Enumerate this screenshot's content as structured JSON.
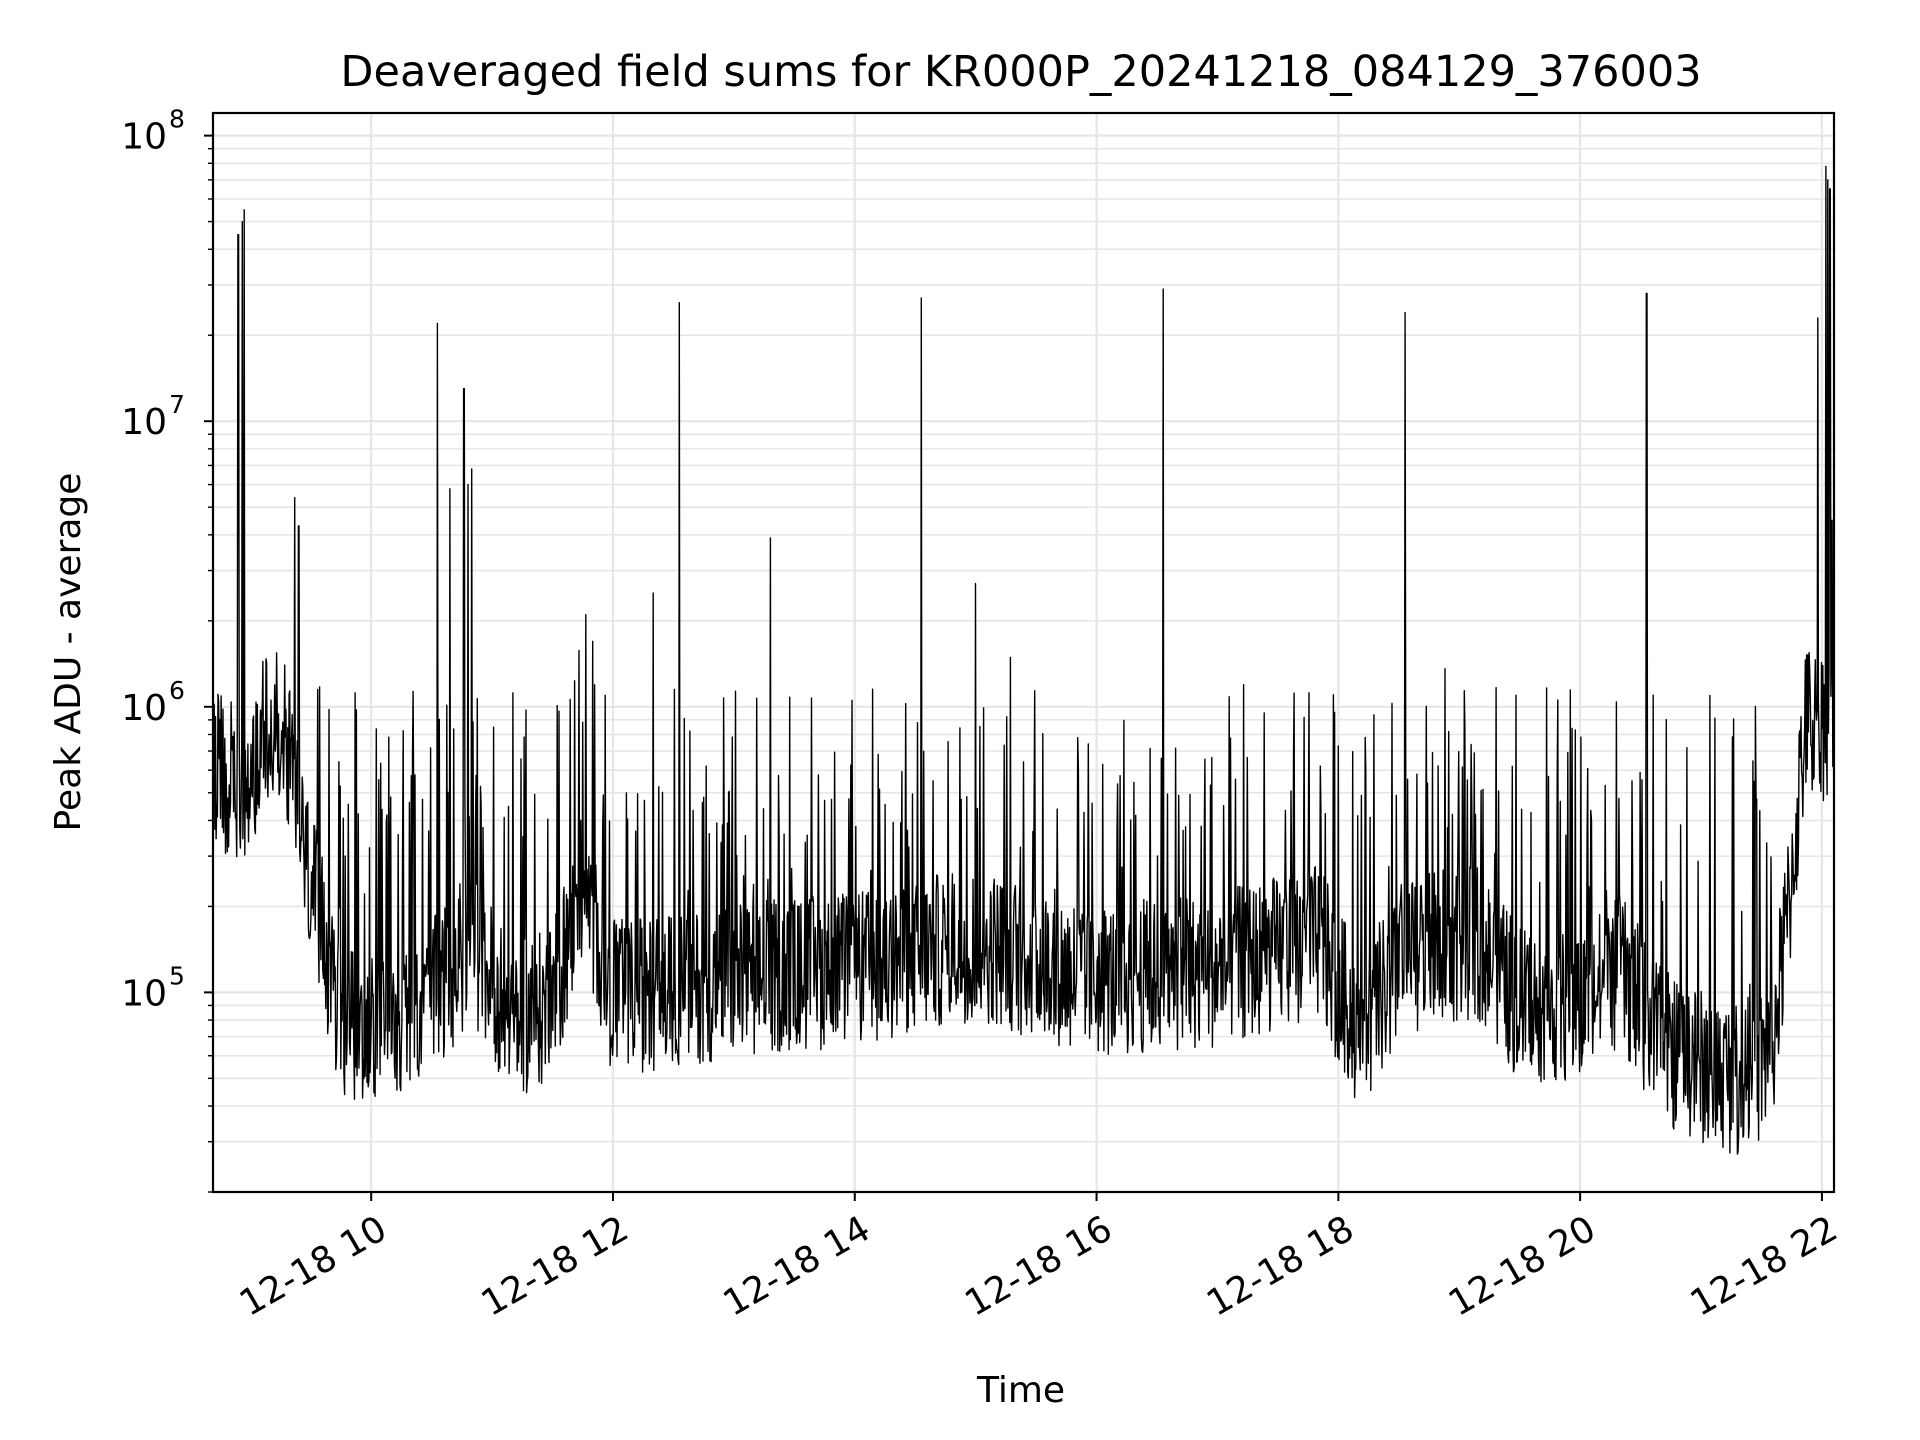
{
  "chart_data": {
    "type": "line",
    "title": "Deaveraged field sums for KR000P_20241218_084129_376003",
    "xlabel": "Time",
    "ylabel": "Peak ADU - average",
    "x_range": [
      "2024-12-18T08:41:29",
      "2024-12-18T22:06:00"
    ],
    "ylim": [
      20000,
      120000000
    ],
    "y_scale": "log",
    "grid": true,
    "legend": "none",
    "line_color": "#000000",
    "grid_color": "#e6e6e6",
    "x_ticks": [
      {
        "label": "12-18 10",
        "value": "2024-12-18T10:00:00"
      },
      {
        "label": "12-18 12",
        "value": "2024-12-18T12:00:00"
      },
      {
        "label": "12-18 14",
        "value": "2024-12-18T14:00:00"
      },
      {
        "label": "12-18 16",
        "value": "2024-12-18T16:00:00"
      },
      {
        "label": "12-18 18",
        "value": "2024-12-18T18:00:00"
      },
      {
        "label": "12-18 20",
        "value": "2024-12-18T20:00:00"
      },
      {
        "label": "12-18 22",
        "value": "2024-12-18T22:00:00"
      }
    ],
    "y_ticks": [
      {
        "base": "10",
        "exp": "5",
        "value": 100000
      },
      {
        "base": "10",
        "exp": "6",
        "value": 1000000
      },
      {
        "base": "10",
        "exp": "7",
        "value": 10000000
      },
      {
        "base": "10",
        "exp": "8",
        "value": 100000000
      }
    ],
    "baseline": [
      [
        "2024-12-18T08:42:00",
        620000
      ],
      [
        "2024-12-18T08:55:00",
        520000
      ],
      [
        "2024-12-18T09:00:00",
        600000
      ],
      [
        "2024-12-18T09:10:00",
        900000
      ],
      [
        "2024-12-18T09:20:00",
        700000
      ],
      [
        "2024-12-18T09:25:00",
        350000
      ],
      [
        "2024-12-18T09:35:00",
        170000
      ],
      [
        "2024-12-18T09:45:00",
        80000
      ],
      [
        "2024-12-18T10:00:00",
        75000
      ],
      [
        "2024-12-18T10:30:00",
        95000
      ],
      [
        "2024-12-18T10:50:00",
        150000
      ],
      [
        "2024-12-18T11:10:00",
        80000
      ],
      [
        "2024-12-18T11:30:00",
        90000
      ],
      [
        "2024-12-18T11:45:00",
        250000
      ],
      [
        "2024-12-18T12:00:00",
        95000
      ],
      [
        "2024-12-18T13:00:00",
        110000
      ],
      [
        "2024-12-18T14:00:00",
        120000
      ],
      [
        "2024-12-18T15:00:00",
        150000
      ],
      [
        "2024-12-18T16:00:00",
        110000
      ],
      [
        "2024-12-18T17:00:00",
        120000
      ],
      [
        "2024-12-18T17:50:00",
        150000
      ],
      [
        "2024-12-18T18:10:00",
        75000
      ],
      [
        "2024-12-18T18:40:00",
        140000
      ],
      [
        "2024-12-18T19:10:00",
        150000
      ],
      [
        "2024-12-18T19:30:00",
        90000
      ],
      [
        "2024-12-18T20:00:00",
        90000
      ],
      [
        "2024-12-18T20:20:00",
        120000
      ],
      [
        "2024-12-18T20:40:00",
        65000
      ],
      [
        "2024-12-18T21:00:00",
        55000
      ],
      [
        "2024-12-18T21:20:00",
        50000
      ],
      [
        "2024-12-18T21:35:00",
        60000
      ],
      [
        "2024-12-18T21:45:00",
        250000
      ],
      [
        "2024-12-18T21:52:00",
        900000
      ],
      [
        "2024-12-18T22:00:00",
        850000
      ],
      [
        "2024-12-18T22:05:00",
        1000000
      ]
    ],
    "spikes": [
      [
        "2024-12-18T08:54:00",
        45000000
      ],
      [
        "2024-12-18T08:56:00",
        50000000
      ],
      [
        "2024-12-18T08:57:00",
        55000000
      ],
      [
        "2024-12-18T09:22:00",
        5400000
      ],
      [
        "2024-12-18T09:24:00",
        4300000
      ],
      [
        "2024-12-18T10:33:00",
        22000000
      ],
      [
        "2024-12-18T10:39:00",
        5800000
      ],
      [
        "2024-12-18T10:46:00",
        13000000
      ],
      [
        "2024-12-18T10:48:00",
        6000000
      ],
      [
        "2024-12-18T10:50:00",
        6800000
      ],
      [
        "2024-12-18T12:20:00",
        2500000
      ],
      [
        "2024-12-18T12:33:00",
        26000000
      ],
      [
        "2024-12-18T13:18:00",
        3900000
      ],
      [
        "2024-12-18T14:33:00",
        27000000
      ],
      [
        "2024-12-18T15:00:00",
        2700000
      ],
      [
        "2024-12-18T16:33:00",
        29000000
      ],
      [
        "2024-12-18T18:33:00",
        24000000
      ],
      [
        "2024-12-18T20:33:00",
        28000000
      ],
      [
        "2024-12-18T21:58:00",
        23000000
      ],
      [
        "2024-12-18T22:02:00",
        78000000
      ],
      [
        "2024-12-18T22:03:00",
        70000000
      ],
      [
        "2024-12-18T22:04:00",
        65000000
      ],
      [
        "2024-12-18T22:05:00",
        4500000
      ],
      [
        "2024-12-18T22:06:00",
        3000000
      ]
    ]
  }
}
